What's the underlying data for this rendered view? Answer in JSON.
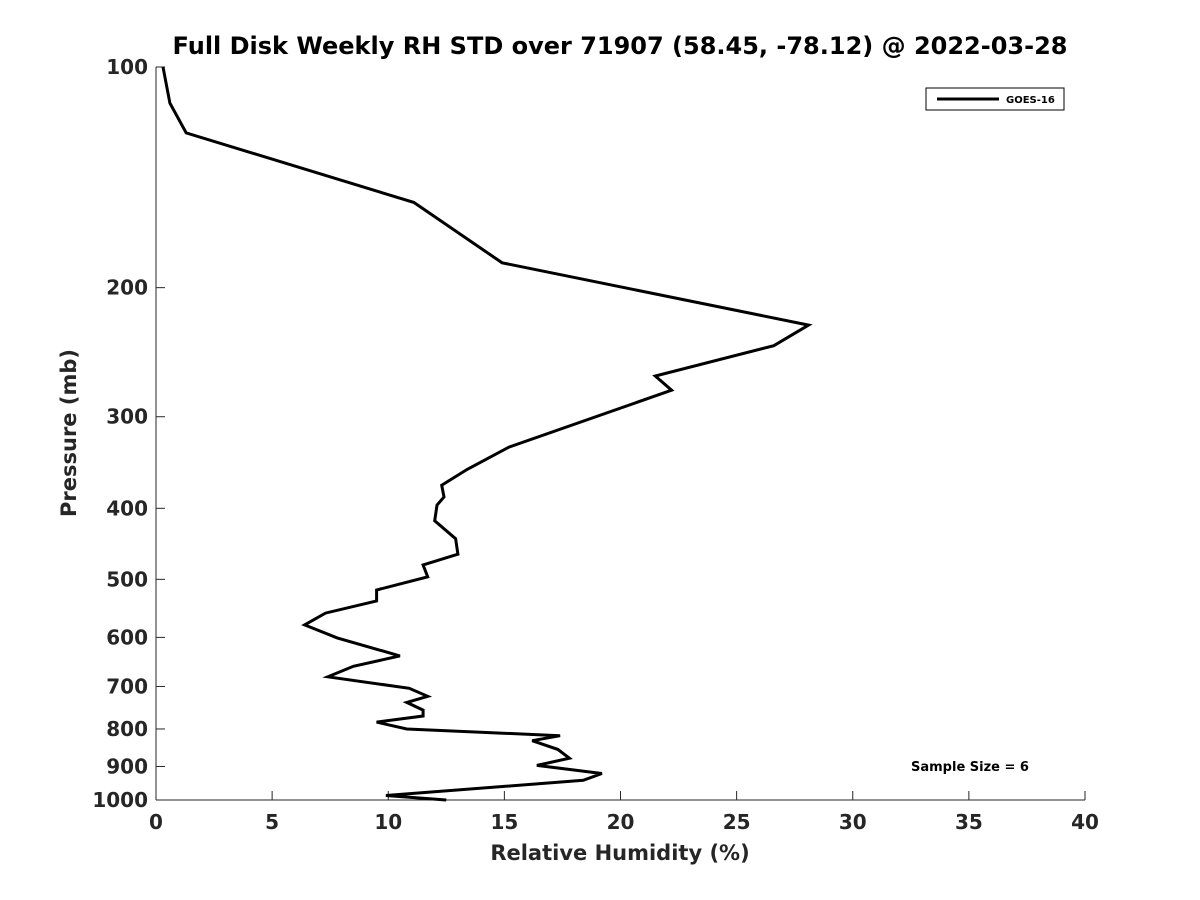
{
  "chart_data": {
    "type": "line",
    "title": "Full Disk Weekly RH STD over 71907 (58.45, -78.12) @ 2022-03-28",
    "xlabel": "Relative Humidity (%)",
    "ylabel": "Pressure (mb)",
    "xlim": [
      0,
      40
    ],
    "ylim": [
      100,
      1000
    ],
    "y_scale": "log",
    "y_reversed": true,
    "x_ticks": [
      0,
      5,
      10,
      15,
      20,
      25,
      30,
      35,
      40
    ],
    "y_ticks": [
      100,
      200,
      300,
      400,
      500,
      600,
      700,
      800,
      900,
      1000
    ],
    "grid": false,
    "legend_position": "top-right",
    "annotation": "Sample Size = 6",
    "series": [
      {
        "name": "GOES-16",
        "color": "#000000",
        "x": [
          0.3,
          0.6,
          1.3,
          11.1,
          14.9,
          28.1,
          26.6,
          21.5,
          22.2,
          15.2,
          13.4,
          12.3,
          12.4,
          12.1,
          12.0,
          12.9,
          13.0,
          11.5,
          11.7,
          9.5,
          9.5,
          7.3,
          6.4,
          7.8,
          10.5,
          8.5,
          7.4,
          10.9,
          11.7,
          10.8,
          11.5,
          11.5,
          9.5,
          10.8,
          17.4,
          16.2,
          17.3,
          17.8,
          16.4,
          19.2,
          18.4,
          9.9,
          12.5
        ],
        "y": [
          100,
          112,
          123,
          153,
          185,
          225,
          240,
          264,
          276,
          330,
          354,
          372,
          386,
          396,
          416,
          440,
          462,
          478,
          496,
          517,
          535,
          556,
          577,
          601,
          636,
          657,
          679,
          704,
          722,
          736,
          754,
          768,
          783,
          800,
          817,
          830,
          853,
          877,
          897,
          920,
          940,
          986,
          1000
        ]
      }
    ]
  }
}
